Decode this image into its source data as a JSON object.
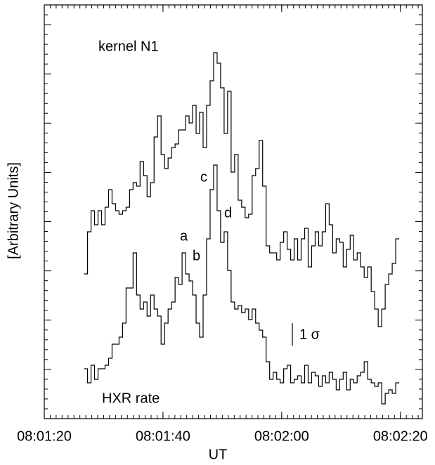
{
  "chart_data": {
    "type": "line",
    "drawstyle": "steps",
    "xlabel": "UT",
    "ylabel": "[Arbitrary Units]",
    "xlim": [
      80,
      143.7
    ],
    "ylim": [
      0,
      589
    ],
    "xticks": [
      {
        "value": 80,
        "label": "08:01:20"
      },
      {
        "value": 100,
        "label": "08:01:40"
      },
      {
        "value": 120,
        "label": "08:02:00"
      },
      {
        "value": 140,
        "label": "08:02:20"
      }
    ],
    "x": [
      86.7,
      87.29,
      87.88,
      88.47,
      89.06,
      89.65,
      90.24,
      90.83,
      91.42,
      92.01,
      92.6,
      93.19,
      93.78,
      94.37,
      94.96,
      95.55,
      96.14,
      96.73,
      97.32,
      97.91,
      98.5,
      99.09,
      99.68,
      100.27,
      100.86,
      101.45,
      102.04,
      102.63,
      103.22,
      103.81,
      104.4,
      104.99,
      105.58,
      106.17,
      106.76,
      107.35,
      107.94,
      108.53,
      109.12,
      109.71,
      110.3,
      110.89,
      111.48,
      112.07,
      112.66,
      113.25,
      113.84,
      114.43,
      115.02,
      115.61,
      116.2,
      116.79,
      117.38,
      117.97,
      118.56,
      119.15,
      119.74,
      120.33,
      120.92,
      121.51,
      122.1,
      122.69,
      123.28,
      123.87,
      124.46,
      125.05,
      125.64,
      126.23,
      126.82,
      127.41,
      128.0,
      128.59,
      129.18,
      129.77,
      130.36,
      130.95,
      131.54,
      132.13,
      132.72,
      133.31,
      133.9,
      134.49,
      135.08,
      135.67,
      136.26,
      136.85,
      137.44,
      138.03,
      138.62,
      139.21
    ],
    "series": [
      {
        "name": "kernel N1",
        "color": "#000000",
        "values": [
          206,
          266,
          296,
          276,
          296,
          276,
          301,
          326,
          306,
          296,
          291,
          296,
          301,
          326,
          336,
          331,
          366,
          346,
          316,
          336,
          401,
          431,
          376,
          356,
          371,
          386,
          391,
          411,
          411,
          431,
          421,
          446,
          406,
          436,
          386,
          446,
          481,
          521,
          506,
          471,
          406,
          466,
          351,
          376,
          311,
          301,
          286,
          291,
          346,
          356,
          396,
          331,
          246,
          236,
          236,
          226,
          251,
          266,
          241,
          226,
          256,
          226,
          256,
          271,
          216,
          246,
          266,
          246,
          266,
          306,
          276,
          236,
          256,
          251,
          216,
          241,
          261,
          226,
          236,
          216,
          201,
          216,
          181,
          156,
          131,
          156,
          191,
          206,
          221,
          256
        ]
      },
      {
        "name": "HXR rate",
        "color": "#000000",
        "values": [
          71,
          51,
          76,
          56,
          71,
          71,
          76,
          86,
          106,
          106,
          116,
          136,
          186,
          186,
          236,
          176,
          156,
          166,
          146,
          176,
          156,
          146,
          106,
          136,
          156,
          166,
          201,
          191,
          236,
          206,
          196,
          176,
          136,
          116,
          176,
          256,
          326,
          361,
          296,
          251,
          266,
          211,
          166,
          156,
          161,
          151,
          156,
          141,
          156,
          136,
          126,
          116,
          81,
          56,
          66,
          56,
          51,
          71,
          76,
          51,
          56,
          61,
          51,
          76,
          51,
          66,
          61,
          46,
          61,
          51,
          66,
          56,
          41,
          56,
          66,
          41,
          56,
          51,
          61,
          66,
          81,
          56,
          51,
          46,
          51,
          21,
          36,
          41,
          36,
          51
        ]
      }
    ],
    "annotations": [
      "a",
      "b",
      "c",
      "d",
      "1 σ"
    ]
  }
}
